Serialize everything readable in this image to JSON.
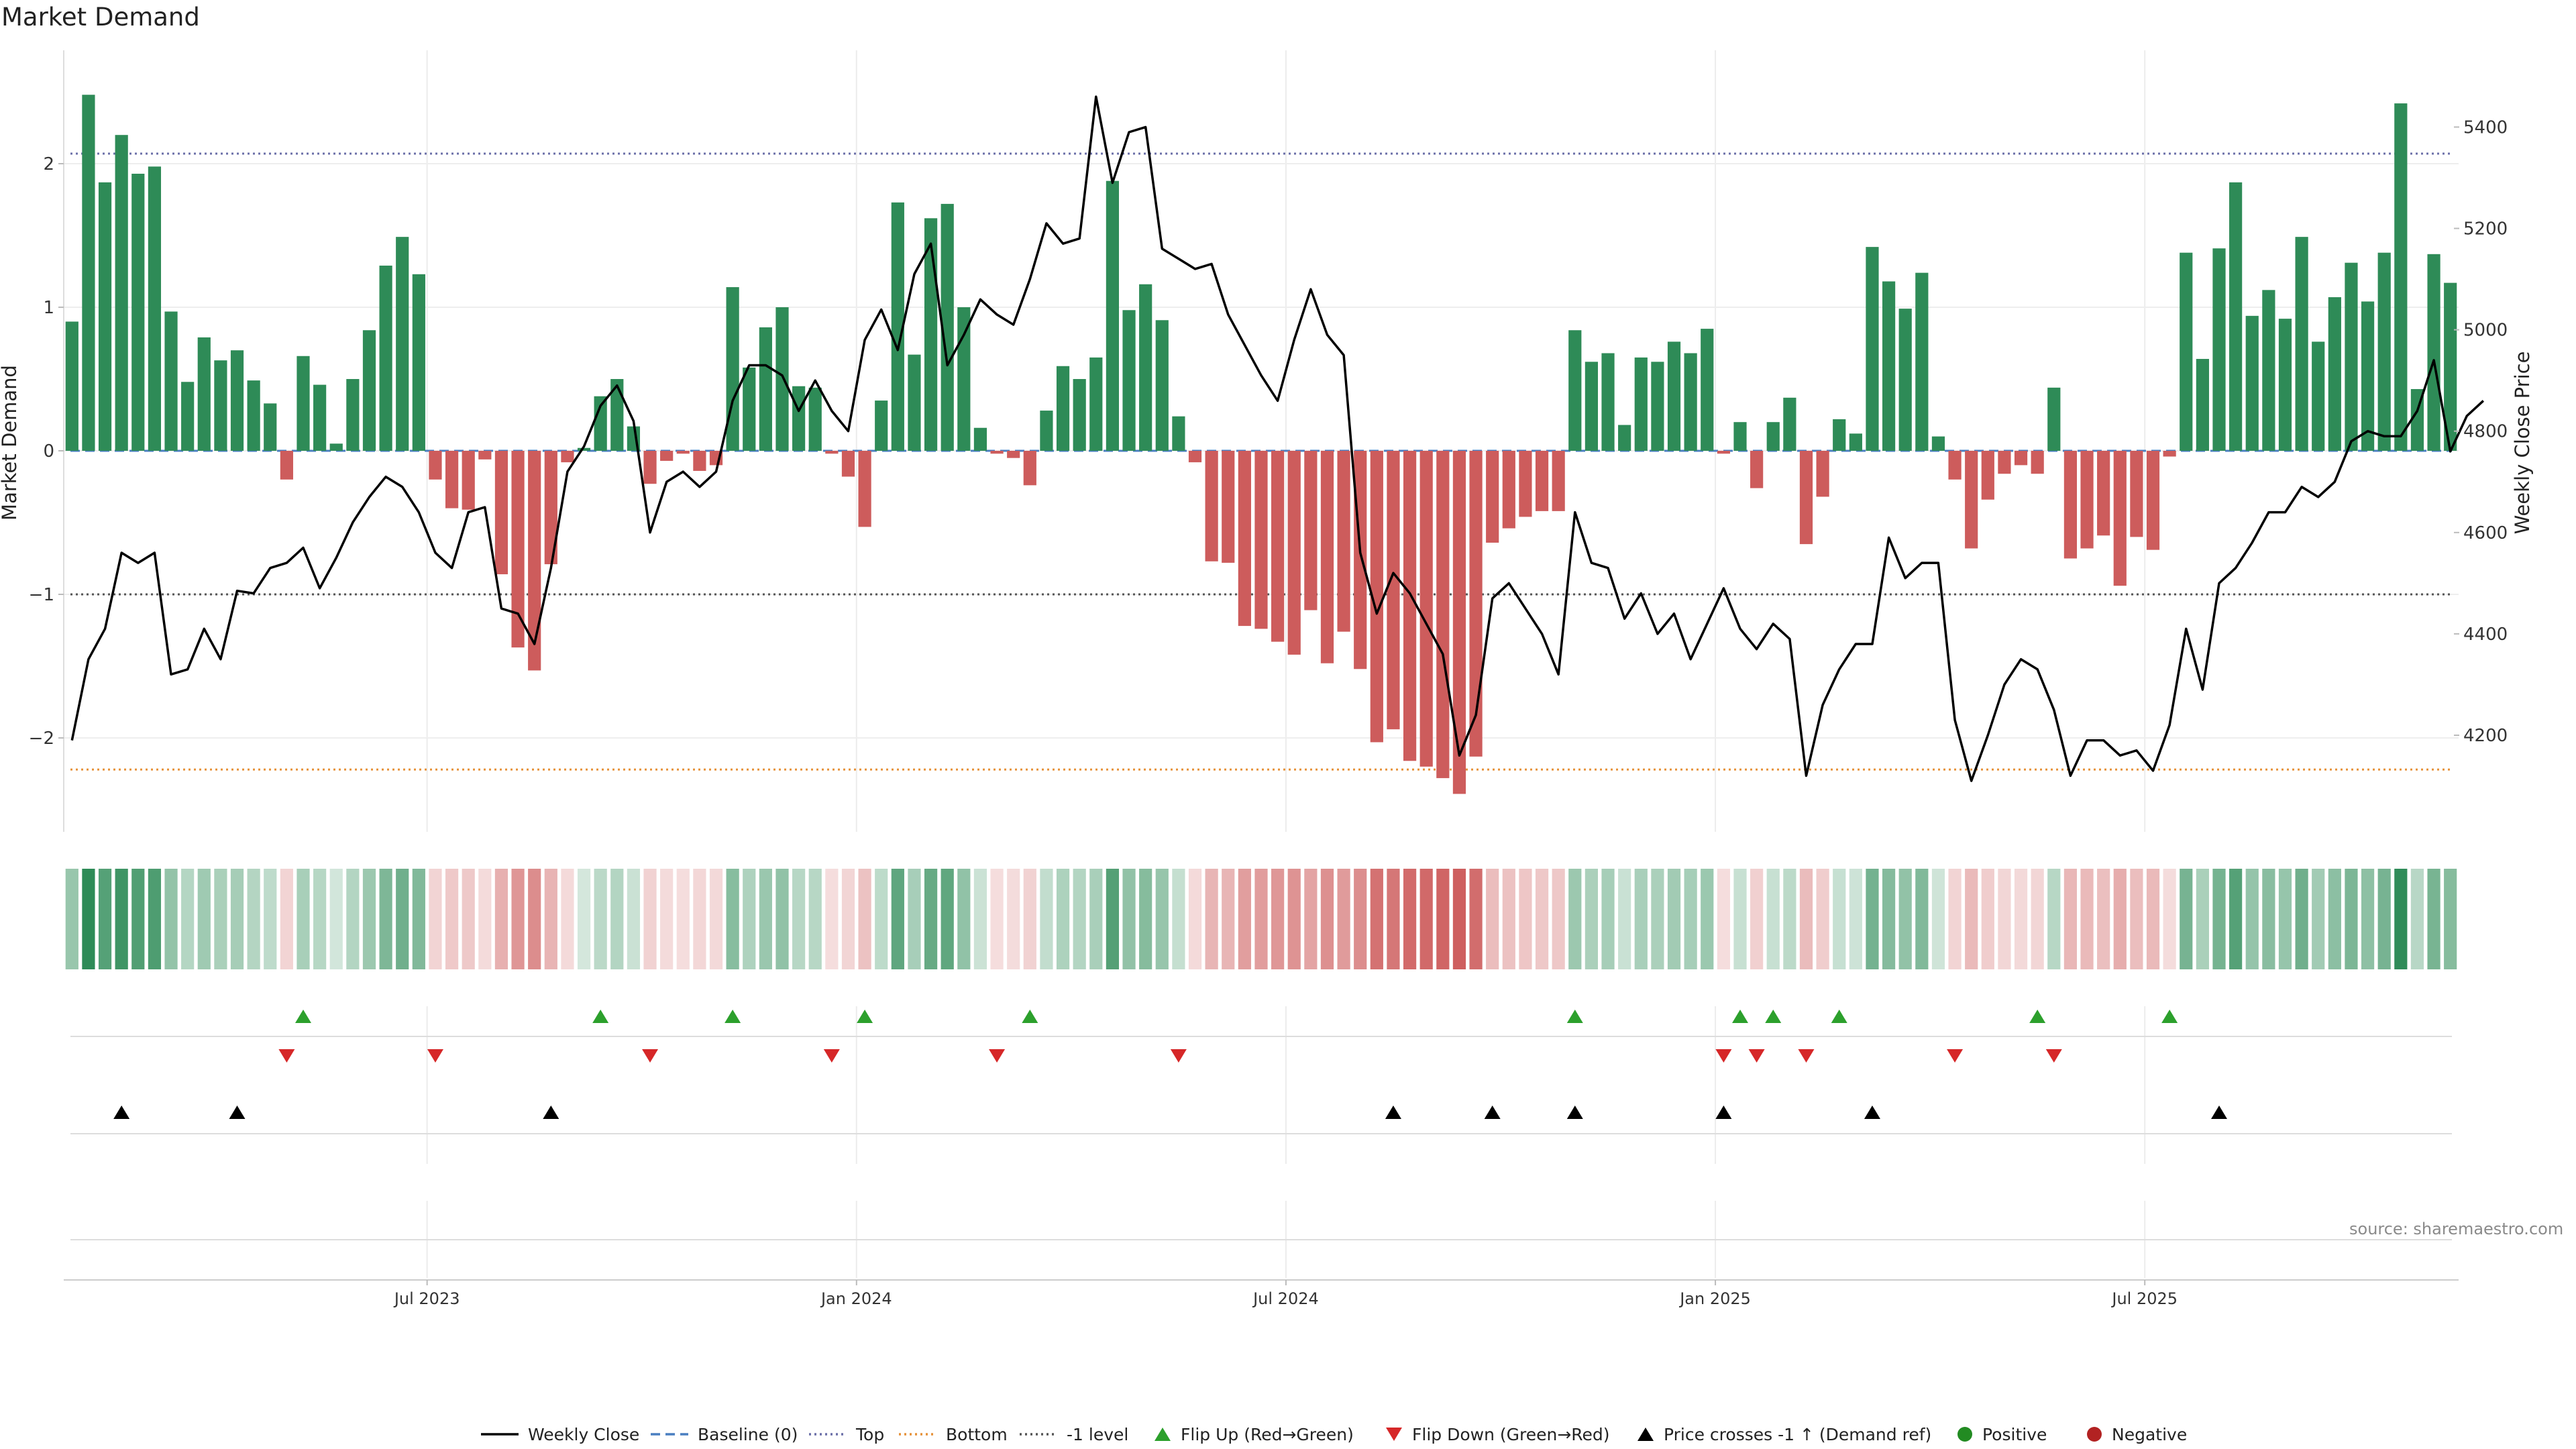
{
  "chart_data": {
    "type": "bar",
    "title": "Market Demand",
    "source_note": "source: sharemaestro.com",
    "ylabel_left": "Market Demand",
    "ylabel_right": "Weekly Close Price",
    "xlabel": "",
    "ylim_left": [
      -2.65,
      2.65
    ],
    "ylim_right": [
      4000,
      5550
    ],
    "yticks_left": [
      {
        "v": 2,
        "label": "2"
      },
      {
        "v": 1,
        "label": "1"
      },
      {
        "v": 0,
        "label": "0"
      },
      {
        "v": -1,
        "label": "−1"
      },
      {
        "v": -2,
        "label": "−2"
      }
    ],
    "yticks_right": [
      {
        "v": 5400,
        "label": "5400"
      },
      {
        "v": 5200,
        "label": "5200"
      },
      {
        "v": 5000,
        "label": "5000"
      },
      {
        "v": 4800,
        "label": "4800"
      },
      {
        "v": 4600,
        "label": "4600"
      },
      {
        "v": 4400,
        "label": "4400"
      },
      {
        "v": 4200,
        "label": "4200"
      }
    ],
    "x_ticks": [
      {
        "index": 22,
        "label": "Jul 2023"
      },
      {
        "index": 48,
        "label": "Jan 2024"
      },
      {
        "index": 74,
        "label": "Jul 2024"
      },
      {
        "index": 100,
        "label": "Jan 2025"
      },
      {
        "index": 126,
        "label": "Jul 2025"
      }
    ],
    "reference_lines": {
      "top": 2.07,
      "bottom": -2.22,
      "minus_one": -1.0,
      "baseline": 0
    },
    "colors": {
      "positive": "#2e8b57",
      "negative": "#cd5c5c",
      "close": "#000000",
      "top_line": "#6b6fa8",
      "bottom_line": "#e69138",
      "minus_one_line": "#555555",
      "baseline_line": "#4a7fc1",
      "flip_up": "#2ca02c",
      "flip_down": "#d62728",
      "cross": "#000000"
    },
    "series": [
      {
        "name": "Market Demand",
        "values": [
          0.9,
          2.48,
          1.87,
          2.2,
          1.93,
          1.98,
          0.97,
          0.48,
          0.79,
          0.63,
          0.7,
          0.49,
          0.33,
          -0.2,
          0.66,
          0.46,
          0.05,
          0.5,
          0.84,
          1.29,
          1.49,
          1.23,
          -0.2,
          -0.4,
          -0.41,
          -0.06,
          -0.86,
          -1.37,
          -1.53,
          -0.79,
          -0.08,
          0.02,
          0.38,
          0.5,
          0.17,
          -0.23,
          -0.07,
          -0.02,
          -0.14,
          -0.1,
          1.14,
          0.58,
          0.86,
          1.0,
          0.45,
          0.44,
          -0.02,
          -0.18,
          -0.53,
          0.35,
          1.73,
          0.67,
          1.62,
          1.72,
          1.0,
          0.16,
          -0.02,
          -0.05,
          -0.24,
          0.28,
          0.59,
          0.5,
          0.65,
          1.88,
          0.98,
          1.16,
          0.91,
          0.24,
          -0.08,
          -0.77,
          -0.78,
          -1.22,
          -1.24,
          -1.33,
          -1.42,
          -1.11,
          -1.48,
          -1.26,
          -1.52,
          -2.03,
          -1.94,
          -2.16,
          -2.2,
          -2.28,
          -2.39,
          -2.13,
          -0.64,
          -0.54,
          -0.46,
          -0.42,
          -0.42,
          0.84,
          0.62,
          0.68,
          0.18,
          0.65,
          0.62,
          0.76,
          0.68,
          0.85,
          -0.02,
          0.2,
          -0.26,
          0.2,
          0.37,
          -0.65,
          -0.32,
          0.22,
          0.12,
          1.42,
          1.18,
          0.99,
          1.24,
          0.1,
          -0.2,
          -0.68,
          -0.34,
          -0.16,
          -0.1,
          -0.16,
          0.44,
          -0.75,
          -0.68,
          -0.59,
          -0.94,
          -0.6,
          -0.69,
          -0.04,
          1.38,
          0.64,
          1.41,
          1.87,
          0.94,
          1.12,
          0.92,
          1.49,
          0.76,
          1.07,
          1.31,
          1.04,
          1.38,
          2.42,
          0.43,
          1.37,
          1.17
        ]
      },
      {
        "name": "Weekly Close",
        "values": [
          4190,
          4350,
          4410,
          4560,
          4540,
          4560,
          4320,
          4330,
          4410,
          4350,
          4485,
          4480,
          4530,
          4540,
          4570,
          4490,
          4550,
          4620,
          4670,
          4710,
          4690,
          4640,
          4560,
          4530,
          4640,
          4650,
          4450,
          4440,
          4380,
          4530,
          4720,
          4770,
          4850,
          4890,
          4820,
          4600,
          4700,
          4720,
          4690,
          4720,
          4860,
          4930,
          4930,
          4910,
          4840,
          4900,
          4840,
          4800,
          4980,
          5040,
          4960,
          5110,
          5170,
          4930,
          4990,
          5060,
          5030,
          5010,
          5100,
          5210,
          5170,
          5180,
          5460,
          5290,
          5390,
          5400,
          5160,
          5140,
          5120,
          5130,
          5030,
          4970,
          4910,
          4860,
          4980,
          5080,
          4990,
          4950,
          4560,
          4440,
          4520,
          4480,
          4420,
          4360,
          4160,
          4240,
          4470,
          4500,
          4450,
          4400,
          4320,
          4640,
          4540,
          4530,
          4430,
          4480,
          4400,
          4440,
          4350,
          4420,
          4490,
          4410,
          4370,
          4420,
          4390,
          4120,
          4260,
          4330,
          4380,
          4380,
          4590,
          4510,
          4540,
          4540,
          4230,
          4110,
          4200,
          4300,
          4350,
          4330,
          4250,
          4120,
          4190,
          4190,
          4160,
          4170,
          4130,
          4220,
          4410,
          4290,
          4500,
          4530,
          4580,
          4640,
          4640,
          4690,
          4670,
          4700,
          4780,
          4800,
          4790,
          4790,
          4840,
          4940,
          4760,
          4830,
          4860
        ]
      }
    ],
    "strength_strip": [
      "+",
      "+",
      "+",
      "+",
      "+",
      "+",
      "+",
      "+",
      "+",
      "+",
      "+",
      "+",
      "+",
      "-",
      "+",
      "+",
      "+",
      "+",
      "+",
      "+",
      "+",
      "+",
      "-",
      "-",
      "-",
      "-",
      "-",
      "-",
      "-",
      "-",
      "-",
      "+",
      "+",
      "+",
      "+",
      "-",
      "-",
      "-",
      "-",
      "-",
      "+",
      "+",
      "+",
      "+",
      "+",
      "+",
      "-",
      "-",
      "-",
      "+",
      "+",
      "+",
      "+",
      "+",
      "+",
      "+",
      "-",
      "-",
      "-",
      "+",
      "+",
      "+",
      "+",
      "+",
      "+",
      "+",
      "+",
      "+",
      "-",
      "-",
      "-",
      "-",
      "-",
      "-",
      "-",
      "-",
      "-",
      "-",
      "-",
      "-",
      "-",
      "-",
      "-",
      "-",
      "-",
      "-",
      "-",
      "-",
      "-",
      "-",
      "-",
      "+",
      "+",
      "+",
      "+",
      "+",
      "+",
      "+",
      "+",
      "+",
      "-",
      "+",
      "-",
      "+",
      "+",
      "-",
      "-",
      "+",
      "+",
      "+",
      "+",
      "+",
      "+",
      "+",
      "-",
      "-",
      "-",
      "-",
      "-",
      "-",
      "+",
      "-",
      "-",
      "-",
      "-",
      "-",
      "-",
      "-",
      "+",
      "+",
      "+",
      "+",
      "+",
      "+",
      "+",
      "+",
      "+",
      "+",
      "+",
      "+",
      "+",
      "+",
      "+",
      "+",
      "+"
    ],
    "events": {
      "flip_up": [
        14,
        32,
        40,
        48,
        58,
        91,
        101,
        103,
        107,
        119,
        127
      ],
      "flip_down": [
        13,
        22,
        35,
        46,
        56,
        67,
        100,
        102,
        105,
        114,
        120
      ],
      "price_cross_up": [
        3,
        10,
        29,
        80,
        86,
        91,
        100,
        109,
        130
      ]
    },
    "legend": [
      {
        "label": "Weekly Close",
        "marker": "line-solid",
        "color": "#000000"
      },
      {
        "label": "Baseline (0)",
        "marker": "line-dashed",
        "color": "#4a7fc1"
      },
      {
        "label": "Top",
        "marker": "line-dotted",
        "color": "#6b6fa8"
      },
      {
        "label": "Bottom",
        "marker": "line-dotted",
        "color": "#e69138"
      },
      {
        "label": "-1 level",
        "marker": "line-dotted",
        "color": "#555555"
      },
      {
        "label": "Flip Up (Red→Green)",
        "marker": "triangle-up",
        "color": "#2ca02c"
      },
      {
        "label": "Flip Down (Green→Red)",
        "marker": "triangle-down",
        "color": "#d62728"
      },
      {
        "label": "Price crosses -1 ↑ (Demand ref)",
        "marker": "triangle-up",
        "color": "#000000"
      },
      {
        "label": "Positive",
        "marker": "circle",
        "color": "#228b22"
      },
      {
        "label": "Negative",
        "marker": "circle",
        "color": "#b22222"
      }
    ]
  }
}
